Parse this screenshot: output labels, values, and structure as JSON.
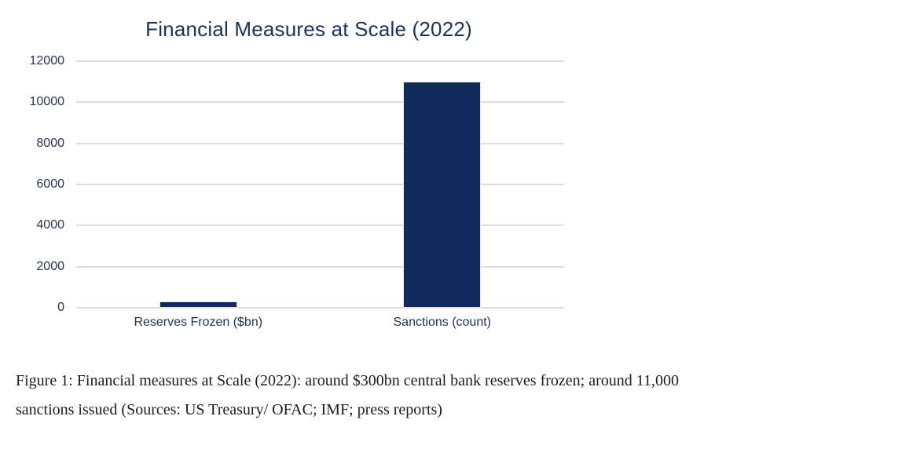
{
  "page": {
    "background_color": "#ffffff"
  },
  "chart_data": {
    "type": "bar",
    "title": "Financial Measures at Scale (2022)",
    "categories": [
      "Reserves Frozen ($bn)",
      "Sanctions (count)"
    ],
    "values": [
      300,
      11000
    ],
    "xlabel": "",
    "ylabel": "",
    "ylim": [
      0,
      12000
    ],
    "yticks": [
      0,
      2000,
      4000,
      6000,
      8000,
      10000,
      12000
    ],
    "grid": "horizontal",
    "legend_position": "none",
    "bar_color": "#102A5E",
    "bar_border_color": "#EDEAC2",
    "gridline_color": "#DCDCDC",
    "title_color": "#1D3356",
    "tick_label_color": "#27364E",
    "category_label_color": "#1F3150"
  },
  "caption": {
    "lines": [
      "Figure 1: Financial measures at Scale (2022): around $300bn central bank reserves frozen; around 11,000",
      "sanctions issued (Sources: US Treasury/ OFAC; IMF; press reports)"
    ],
    "full_text": "Figure 1: Financial measures at Scale (2022): around $300bn central bank reserves frozen; around 11,000 sanctions issued (Sources: US Treasury/ OFAC; IMF; press reports)"
  }
}
